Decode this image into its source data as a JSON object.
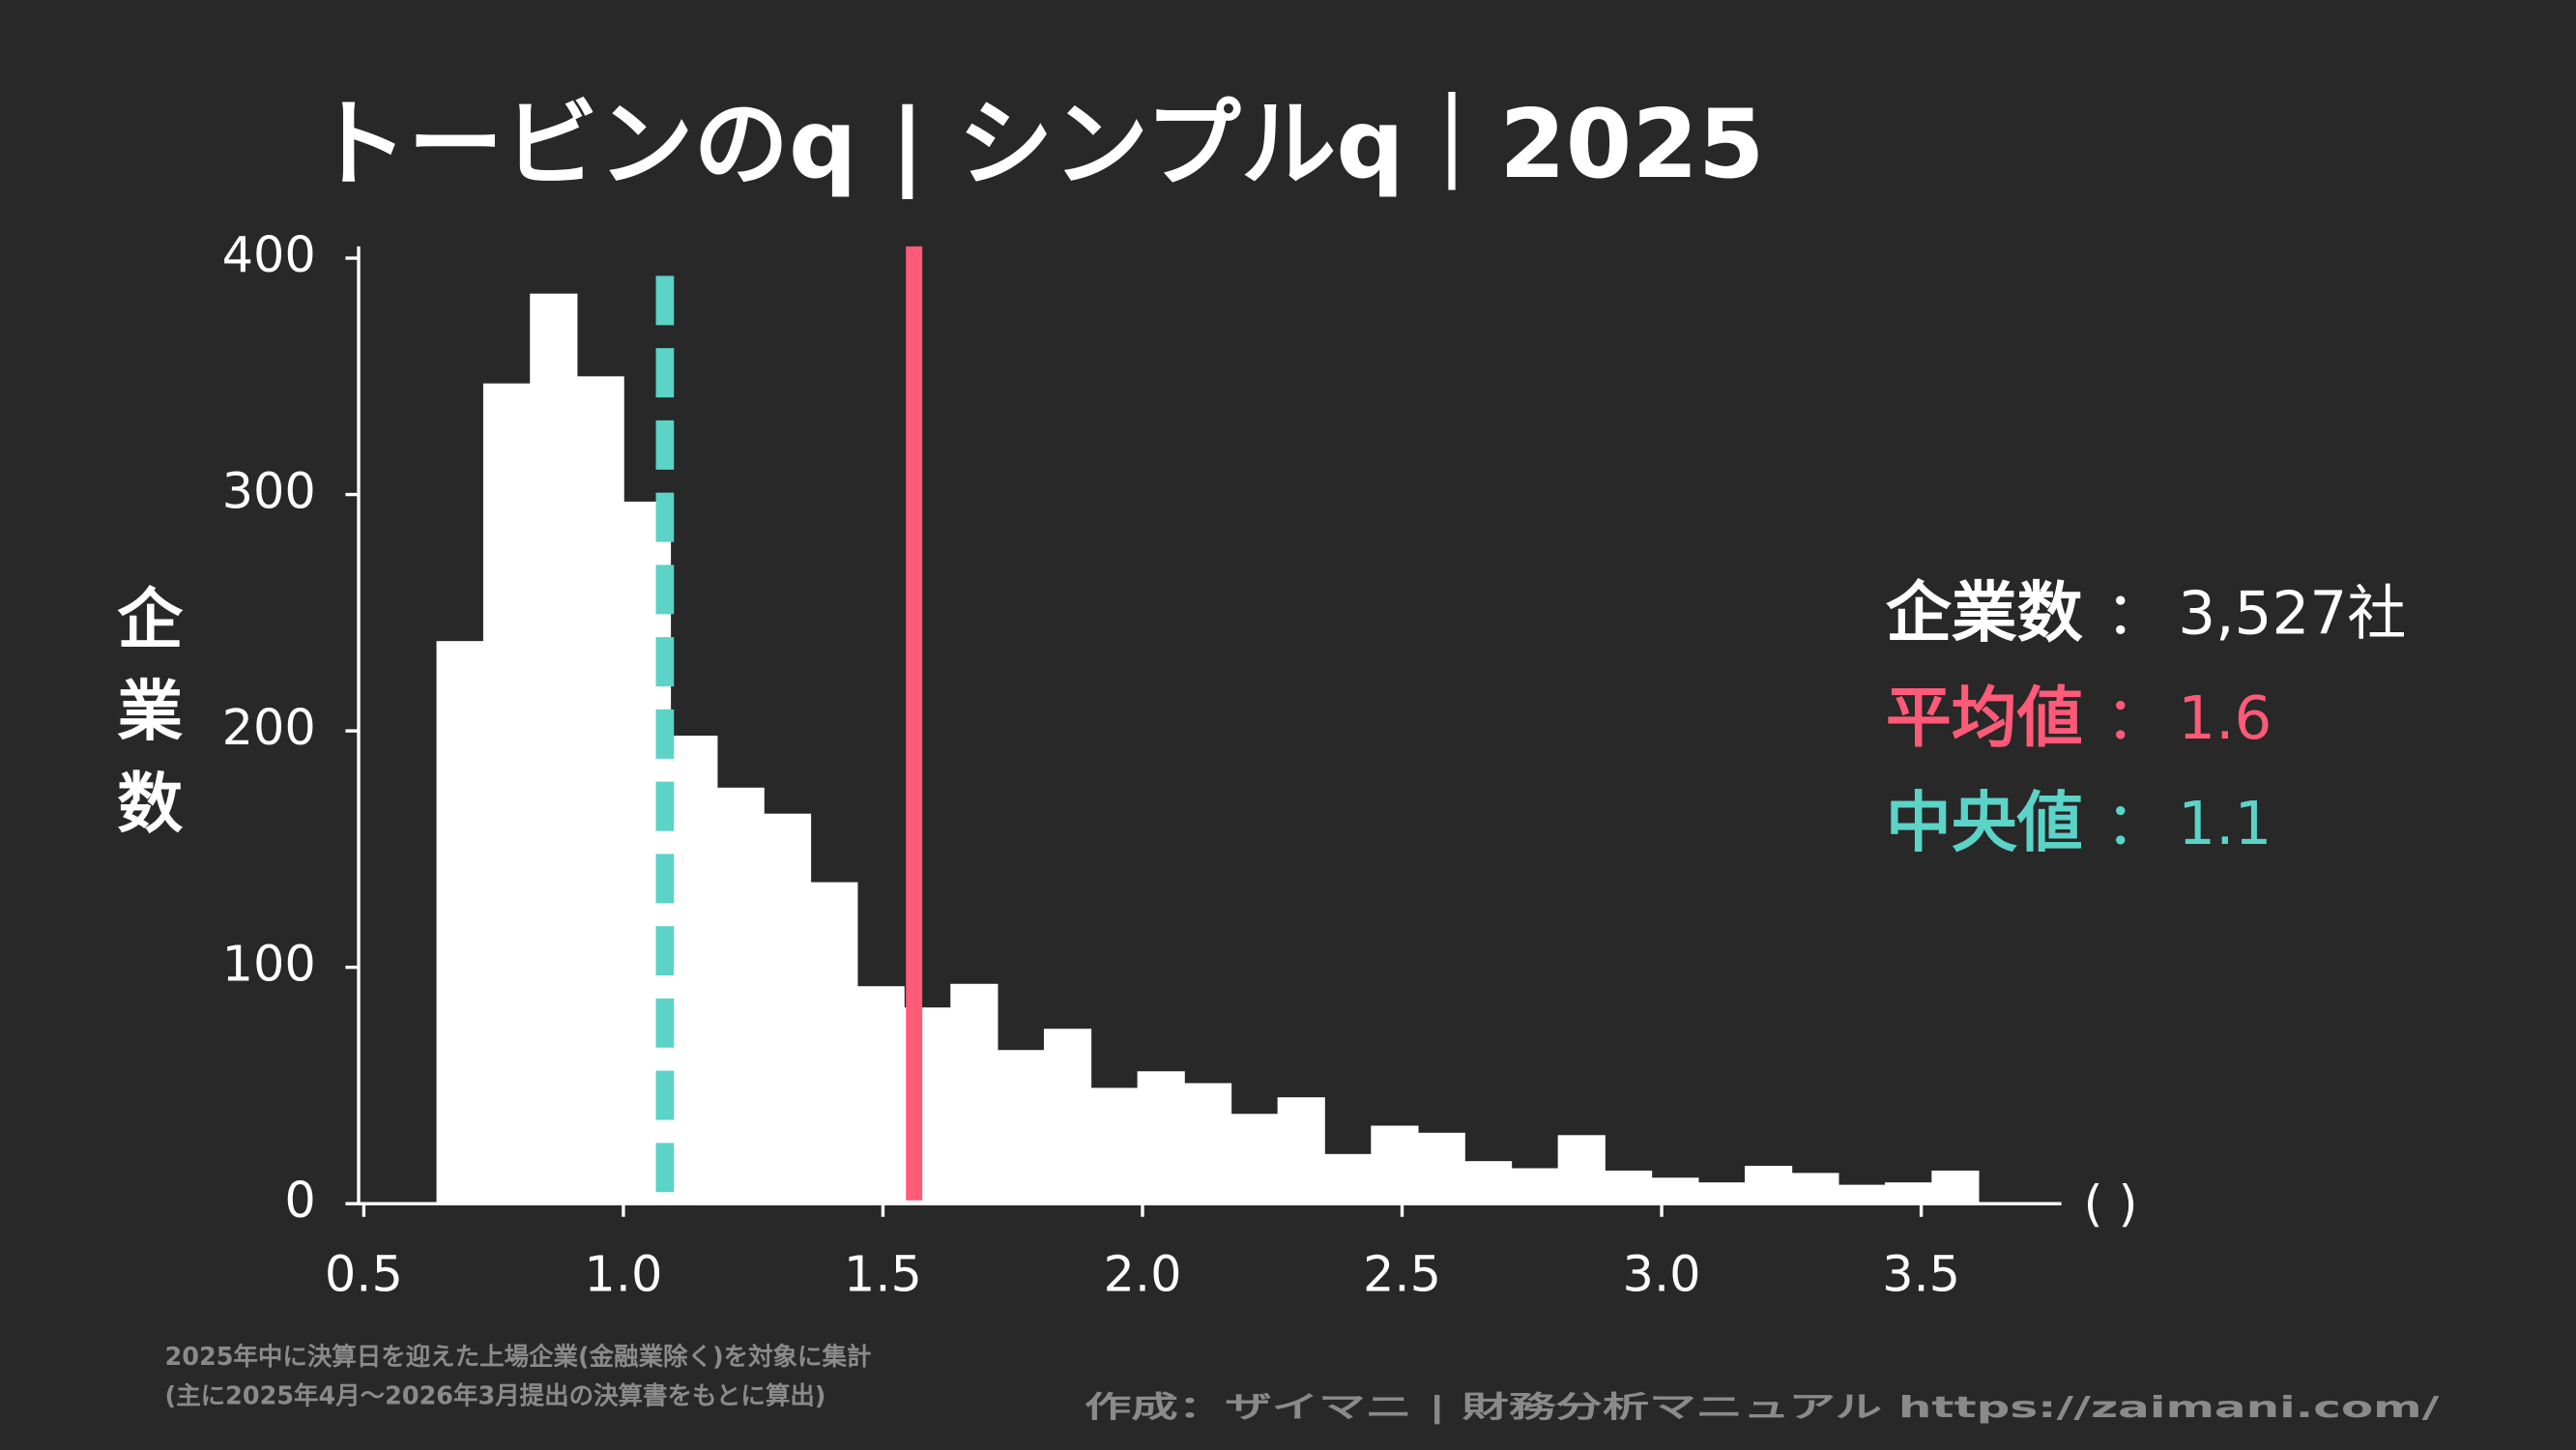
{
  "chart_data": {
    "type": "histogram",
    "title": "トービンのq | シンプルq｜2025",
    "ylabel": "企業数",
    "xlabel": "( )",
    "bins": [
      0.64,
      0.73,
      0.82,
      0.91,
      1.0,
      1.09,
      1.18,
      1.27,
      1.36,
      1.45,
      1.54,
      1.63,
      1.72,
      1.81,
      1.9,
      1.99,
      2.08,
      2.17,
      2.26,
      2.35,
      2.44,
      2.53,
      2.62,
      2.71,
      2.8,
      2.89,
      2.98,
      3.07,
      3.16,
      3.25,
      3.34,
      3.43,
      3.52,
      3.61
    ],
    "counts": [
      238,
      347,
      385,
      350,
      297,
      198,
      176,
      165,
      136,
      92,
      83,
      93,
      65,
      74,
      49,
      56,
      51,
      38,
      45,
      21,
      33,
      30,
      18,
      15,
      29,
      14,
      11,
      9,
      16,
      13,
      8,
      9,
      14
    ],
    "color": "#ffffff",
    "xlim": [
      0.49,
      3.77
    ],
    "ylim": [
      0,
      405
    ],
    "xticks": [
      0.5,
      {
        "value": 1.0,
        "label": "1.0"
      },
      1.5,
      {
        "value": 2.0,
        "label": "2.0"
      },
      2.5,
      {
        "value": 3.0,
        "label": "3.0"
      },
      3.5
    ],
    "yticks": [
      0,
      100,
      200,
      300,
      400
    ],
    "separator": "：",
    "stats": [
      {
        "name": "企業数",
        "value": 3527,
        "value_label": "3,527社",
        "color": "#ffffff"
      },
      {
        "name": "平均値",
        "value": 1.56,
        "value_label": "1.6",
        "color": "#ff5a78",
        "line": "solid"
      },
      {
        "name": "中央値",
        "value": 1.08,
        "value_label": "1.1",
        "color": "#5bd3c7",
        "line": "dashed"
      }
    ],
    "footnote": [
      "2025年中に決算日を迎えた上場企業(金融業除く)を対象に集計",
      "(主に2025年4月〜2026年3月提出の決算書をもとに算出)"
    ],
    "credit": "作成：ザイマニ | 財務分析マニュアル https://zaimani.com/"
  }
}
